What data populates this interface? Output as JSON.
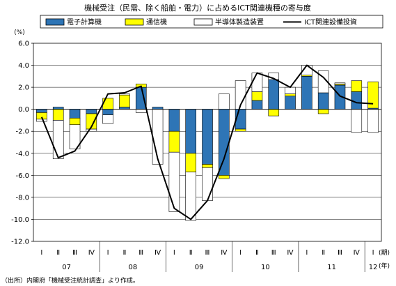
{
  "chart_data": {
    "type": "bar",
    "title": "機械受注（民需、除く船舶・電力）に占めるICT関連機種の寄与度",
    "yunit": "(%)",
    "ylim": [
      -12.0,
      6.0
    ],
    "yticks": [
      "6.0",
      "4.0",
      "2.0",
      "0.0",
      "-2.0",
      "-4.0",
      "-6.0",
      "-8.0",
      "-10.0",
      "-12.0"
    ],
    "grid": true,
    "legend_position": "top",
    "quarter_unit": "(期)",
    "year_unit": "(年)",
    "quarters": [
      "Ⅰ",
      "Ⅱ",
      "Ⅲ",
      "Ⅳ",
      "Ⅰ",
      "Ⅱ",
      "Ⅲ",
      "Ⅳ",
      "Ⅰ",
      "Ⅱ",
      "Ⅲ",
      "Ⅳ",
      "Ⅰ",
      "Ⅱ",
      "Ⅲ",
      "Ⅳ",
      "Ⅰ",
      "Ⅱ",
      "Ⅲ",
      "Ⅳ",
      "Ⅰ"
    ],
    "years": [
      {
        "label": "07",
        "start": 0,
        "end": 3
      },
      {
        "label": "08",
        "start": 4,
        "end": 7
      },
      {
        "label": "09",
        "start": 8,
        "end": 11
      },
      {
        "label": "10",
        "start": 12,
        "end": 15
      },
      {
        "label": "11",
        "start": 16,
        "end": 19
      },
      {
        "label": "12",
        "start": 20,
        "end": 20
      }
    ],
    "series": [
      {
        "name": "電子計算機",
        "kind": "bar",
        "color": "#2e75b6",
        "values": [
          -0.3,
          0.2,
          -0.8,
          -0.4,
          -0.5,
          0.2,
          2.0,
          0.2,
          -2.0,
          -4.0,
          -5.0,
          -6.0,
          -1.8,
          0.8,
          2.7,
          1.2,
          3.0,
          1.5,
          2.2,
          1.6,
          0.1
        ]
      },
      {
        "name": "通信機",
        "kind": "bar",
        "color": "#ffff00",
        "values": [
          -0.6,
          -1.0,
          -0.6,
          -1.4,
          1.0,
          1.1,
          0.3,
          0.0,
          -1.9,
          -1.7,
          -0.3,
          -0.3,
          -0.2,
          0.8,
          -0.6,
          0.2,
          0.1,
          -0.4,
          0.1,
          1.0,
          2.4
        ]
      },
      {
        "name": "半導体製造装置",
        "kind": "bar",
        "color": "#ffffff",
        "values": [
          -0.2,
          -3.5,
          -2.2,
          -0.2,
          -0.8,
          0.1,
          -0.3,
          -5.0,
          -5.4,
          -4.4,
          -3.0,
          1.4,
          2.6,
          1.7,
          0.6,
          0.6,
          0.9,
          2.0,
          0.1,
          -2.1,
          -2.1
        ]
      },
      {
        "name": "ICT関連設備投資",
        "kind": "line",
        "color": "#000000",
        "values": [
          -0.7,
          -4.4,
          -3.8,
          -1.6,
          1.4,
          1.5,
          2.1,
          -4.5,
          -9.0,
          -10.0,
          -8.3,
          -4.5,
          0.4,
          3.3,
          2.8,
          2.0,
          4.0,
          2.9,
          1.2,
          0.6,
          0.5
        ]
      }
    ]
  },
  "source_note": "（出所）内閣府「機械受注統計調査」より作成。"
}
